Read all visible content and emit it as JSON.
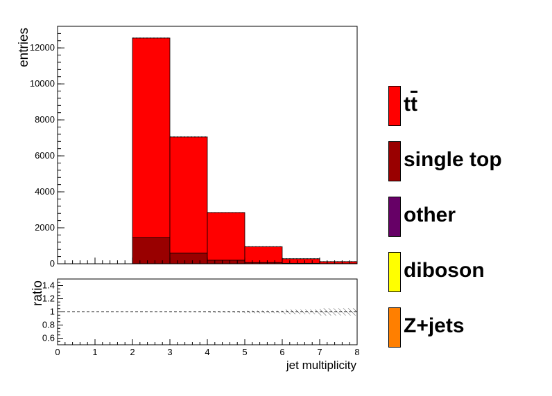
{
  "chart_data": {
    "type": "bar",
    "stacked": true,
    "bin_edges": [
      0,
      1,
      2,
      3,
      4,
      5,
      6,
      7,
      8
    ],
    "x_range": [
      0,
      8
    ],
    "xlabel": "jet multiplicity",
    "ylabel": "entries",
    "ylim": [
      0,
      13200
    ],
    "y_ticks": [
      "0",
      "2000",
      "4000",
      "6000",
      "8000",
      "10000",
      "12000"
    ],
    "x_ticks": [
      "0",
      "1",
      "2",
      "3",
      "4",
      "5",
      "6",
      "7",
      "8"
    ],
    "series": [
      {
        "name": "Z+jets",
        "color": "#ff7f00",
        "values": [
          0,
          0,
          0,
          0,
          0,
          0,
          0,
          0
        ]
      },
      {
        "name": "diboson",
        "color": "#ffff00",
        "values": [
          0,
          0,
          0,
          0,
          0,
          0,
          0,
          0
        ]
      },
      {
        "name": "other",
        "color": "#660066",
        "values": [
          0,
          0,
          0,
          0,
          0,
          0,
          0,
          0
        ]
      },
      {
        "name": "single top",
        "color": "#990000",
        "values": [
          0,
          0,
          1450,
          600,
          200,
          70,
          25,
          10
        ]
      },
      {
        "name": "tt̄",
        "color": "#ff0000",
        "values": [
          0,
          0,
          11100,
          6450,
          2650,
          880,
          255,
          110
        ]
      }
    ],
    "totals": [
      0,
      0,
      12550,
      7050,
      2850,
      950,
      280,
      120
    ],
    "ratio": {
      "ylabel": "ratio",
      "ylim": [
        0.5,
        1.5
      ],
      "y_ticks": [
        "0.6",
        "0.8",
        "1",
        "1.2",
        "1.4"
      ],
      "value": 1.0
    },
    "legend_placement": "right",
    "grid": false
  },
  "legend": {
    "items": [
      {
        "label_main": "t",
        "label_bar": "t",
        "color": "#ff0000"
      },
      {
        "label": "single top",
        "color": "#990000"
      },
      {
        "label": "other",
        "color": "#660066"
      },
      {
        "label": "diboson",
        "color": "#ffff00"
      },
      {
        "label": "Z+jets",
        "color": "#ff7f00"
      }
    ]
  }
}
